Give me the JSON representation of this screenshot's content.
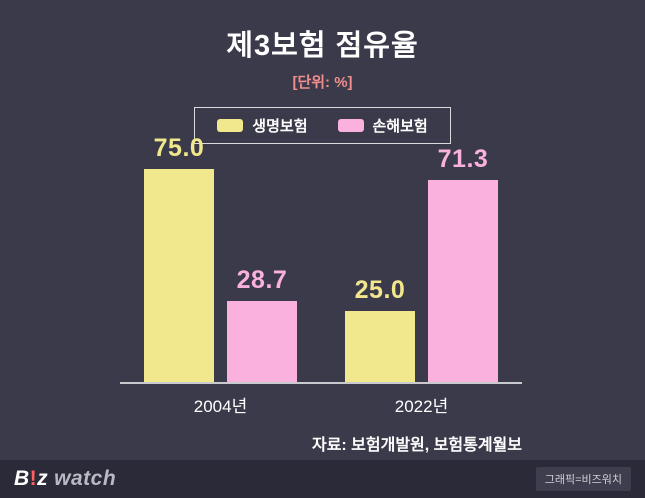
{
  "title": "제3보험 점유율",
  "subtitle": "[단위: %]",
  "colors": {
    "background": "#3b3a4a",
    "footer": "#2b2a38",
    "life_yellow": "#f1e78d",
    "damage_pink": "#fbb1dd",
    "subtitle_pink": "#f08e8e"
  },
  "legend": {
    "items": [
      {
        "label": "생명보험",
        "color": "#f1e78d"
      },
      {
        "label": "손해보험",
        "color": "#fbb1dd"
      }
    ]
  },
  "chart_data": {
    "type": "bar",
    "title": "제3보험 점유율",
    "unit": "%",
    "categories": [
      "2004년",
      "2022년"
    ],
    "series": [
      {
        "name": "생명보험",
        "color": "#f1e78d",
        "values": [
          75.0,
          25.0
        ]
      },
      {
        "name": "손해보험",
        "color": "#fbb1dd",
        "values": [
          28.7,
          71.3
        ]
      }
    ],
    "ylim": [
      0,
      85
    ],
    "grid": false,
    "legend_position": "top",
    "value_labels": [
      "75.0",
      "28.7",
      "25.0",
      "71.3"
    ]
  },
  "source": "자료: 보험개발원, 보험통계월보",
  "footer": {
    "logo_b": "B",
    "logo_excl": "!",
    "logo_z": "z",
    "logo_watch": "watch",
    "credit": "그래픽=비즈워치"
  }
}
